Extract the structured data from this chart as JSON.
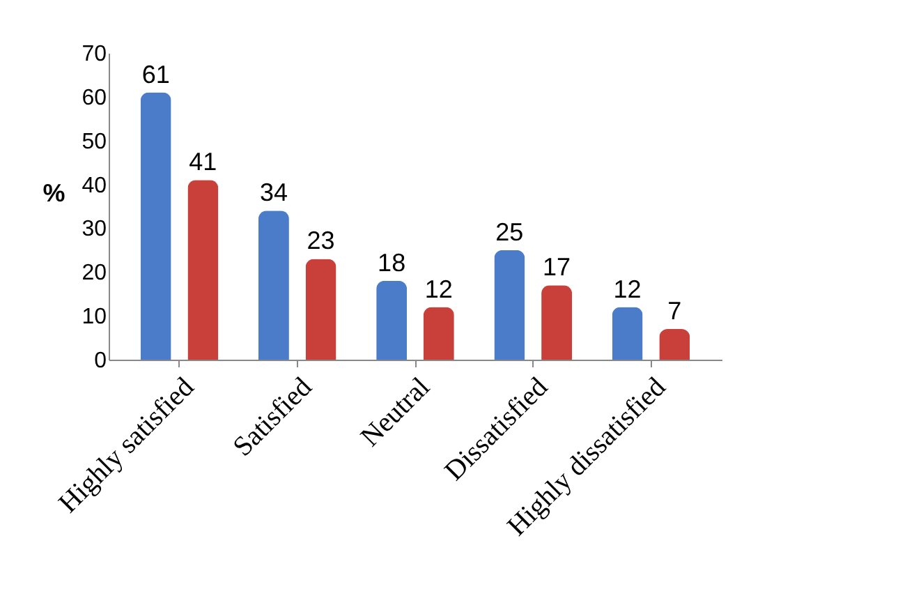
{
  "chart_data": {
    "type": "bar",
    "ylabel": "%",
    "categories": [
      "Highly satisfied",
      "Satisfied",
      "Neutral",
      "Dissatisfied",
      "Highly dissatisfied"
    ],
    "series": [
      {
        "color": "#4a7cc9",
        "values": [
          61,
          34,
          18,
          25,
          12
        ]
      },
      {
        "color": "#c9403a",
        "values": [
          41,
          23,
          12,
          17,
          7
        ]
      }
    ],
    "ylim": [
      0,
      70
    ],
    "yticks": [
      0,
      10,
      20,
      30,
      40,
      50,
      60,
      70
    ],
    "grid": false,
    "data_labels": true
  }
}
